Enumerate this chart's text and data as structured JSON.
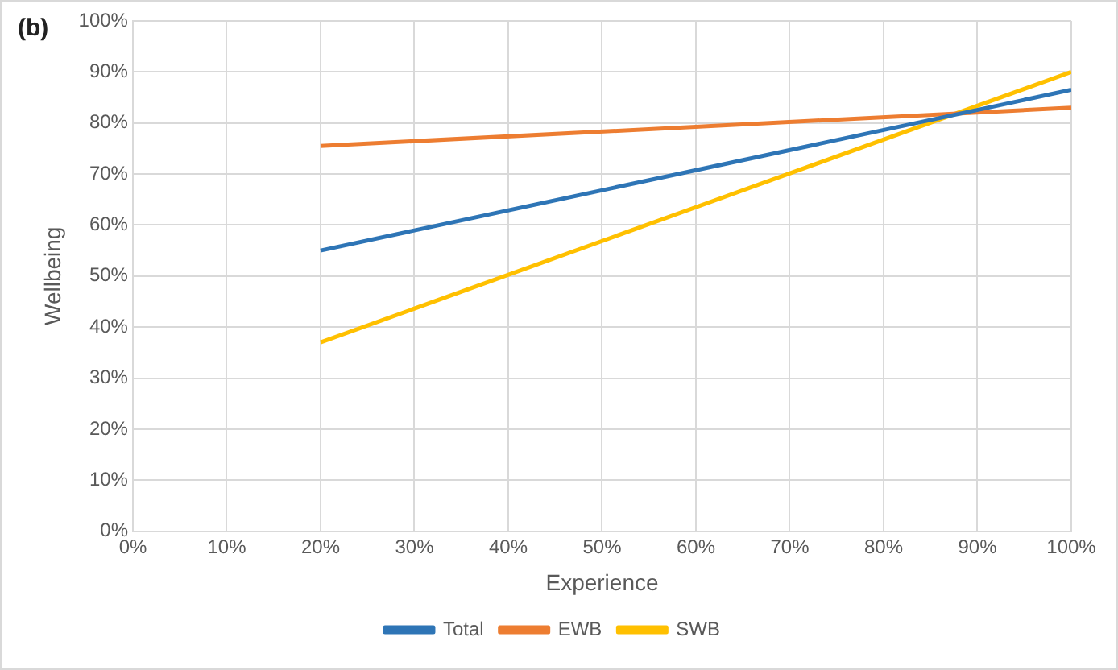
{
  "chart_data": {
    "type": "line",
    "title": "(b)",
    "xlabel": "Experience",
    "ylabel": "Wellbeing",
    "x": [
      20,
      100
    ],
    "series": [
      {
        "name": "Total",
        "color": "#2e75b6",
        "values": [
          55,
          86.5
        ]
      },
      {
        "name": "EWB",
        "color": "#ed7d31",
        "values": [
          75.5,
          83
        ]
      },
      {
        "name": "SWB",
        "color": "#ffc000",
        "values": [
          37,
          90
        ]
      }
    ],
    "xlim": [
      0,
      100
    ],
    "xticks": [
      {
        "value": 0,
        "label": "0%"
      },
      {
        "value": 10,
        "label": "10%"
      },
      {
        "value": 20,
        "label": "20%"
      },
      {
        "value": 30,
        "label": "30%"
      },
      {
        "value": 40,
        "label": "40%"
      },
      {
        "value": 50,
        "label": "50%"
      },
      {
        "value": 60,
        "label": "60%"
      },
      {
        "value": 70,
        "label": "70%"
      },
      {
        "value": 80,
        "label": "80%"
      },
      {
        "value": 90,
        "label": "90%"
      },
      {
        "value": 100,
        "label": "100%"
      }
    ],
    "ylim": [
      0,
      100
    ],
    "yticks": [
      {
        "value": 0,
        "label": "0%"
      },
      {
        "value": 10,
        "label": "10%"
      },
      {
        "value": 20,
        "label": "20%"
      },
      {
        "value": 30,
        "label": "30%"
      },
      {
        "value": 40,
        "label": "40%"
      },
      {
        "value": 50,
        "label": "50%"
      },
      {
        "value": 60,
        "label": "60%"
      },
      {
        "value": 70,
        "label": "70%"
      },
      {
        "value": 80,
        "label": "80%"
      },
      {
        "value": 90,
        "label": "90%"
      },
      {
        "value": 100,
        "label": "100%"
      }
    ],
    "grid": true,
    "legend": "bottom",
    "marker": "none",
    "line_style": "solid"
  }
}
